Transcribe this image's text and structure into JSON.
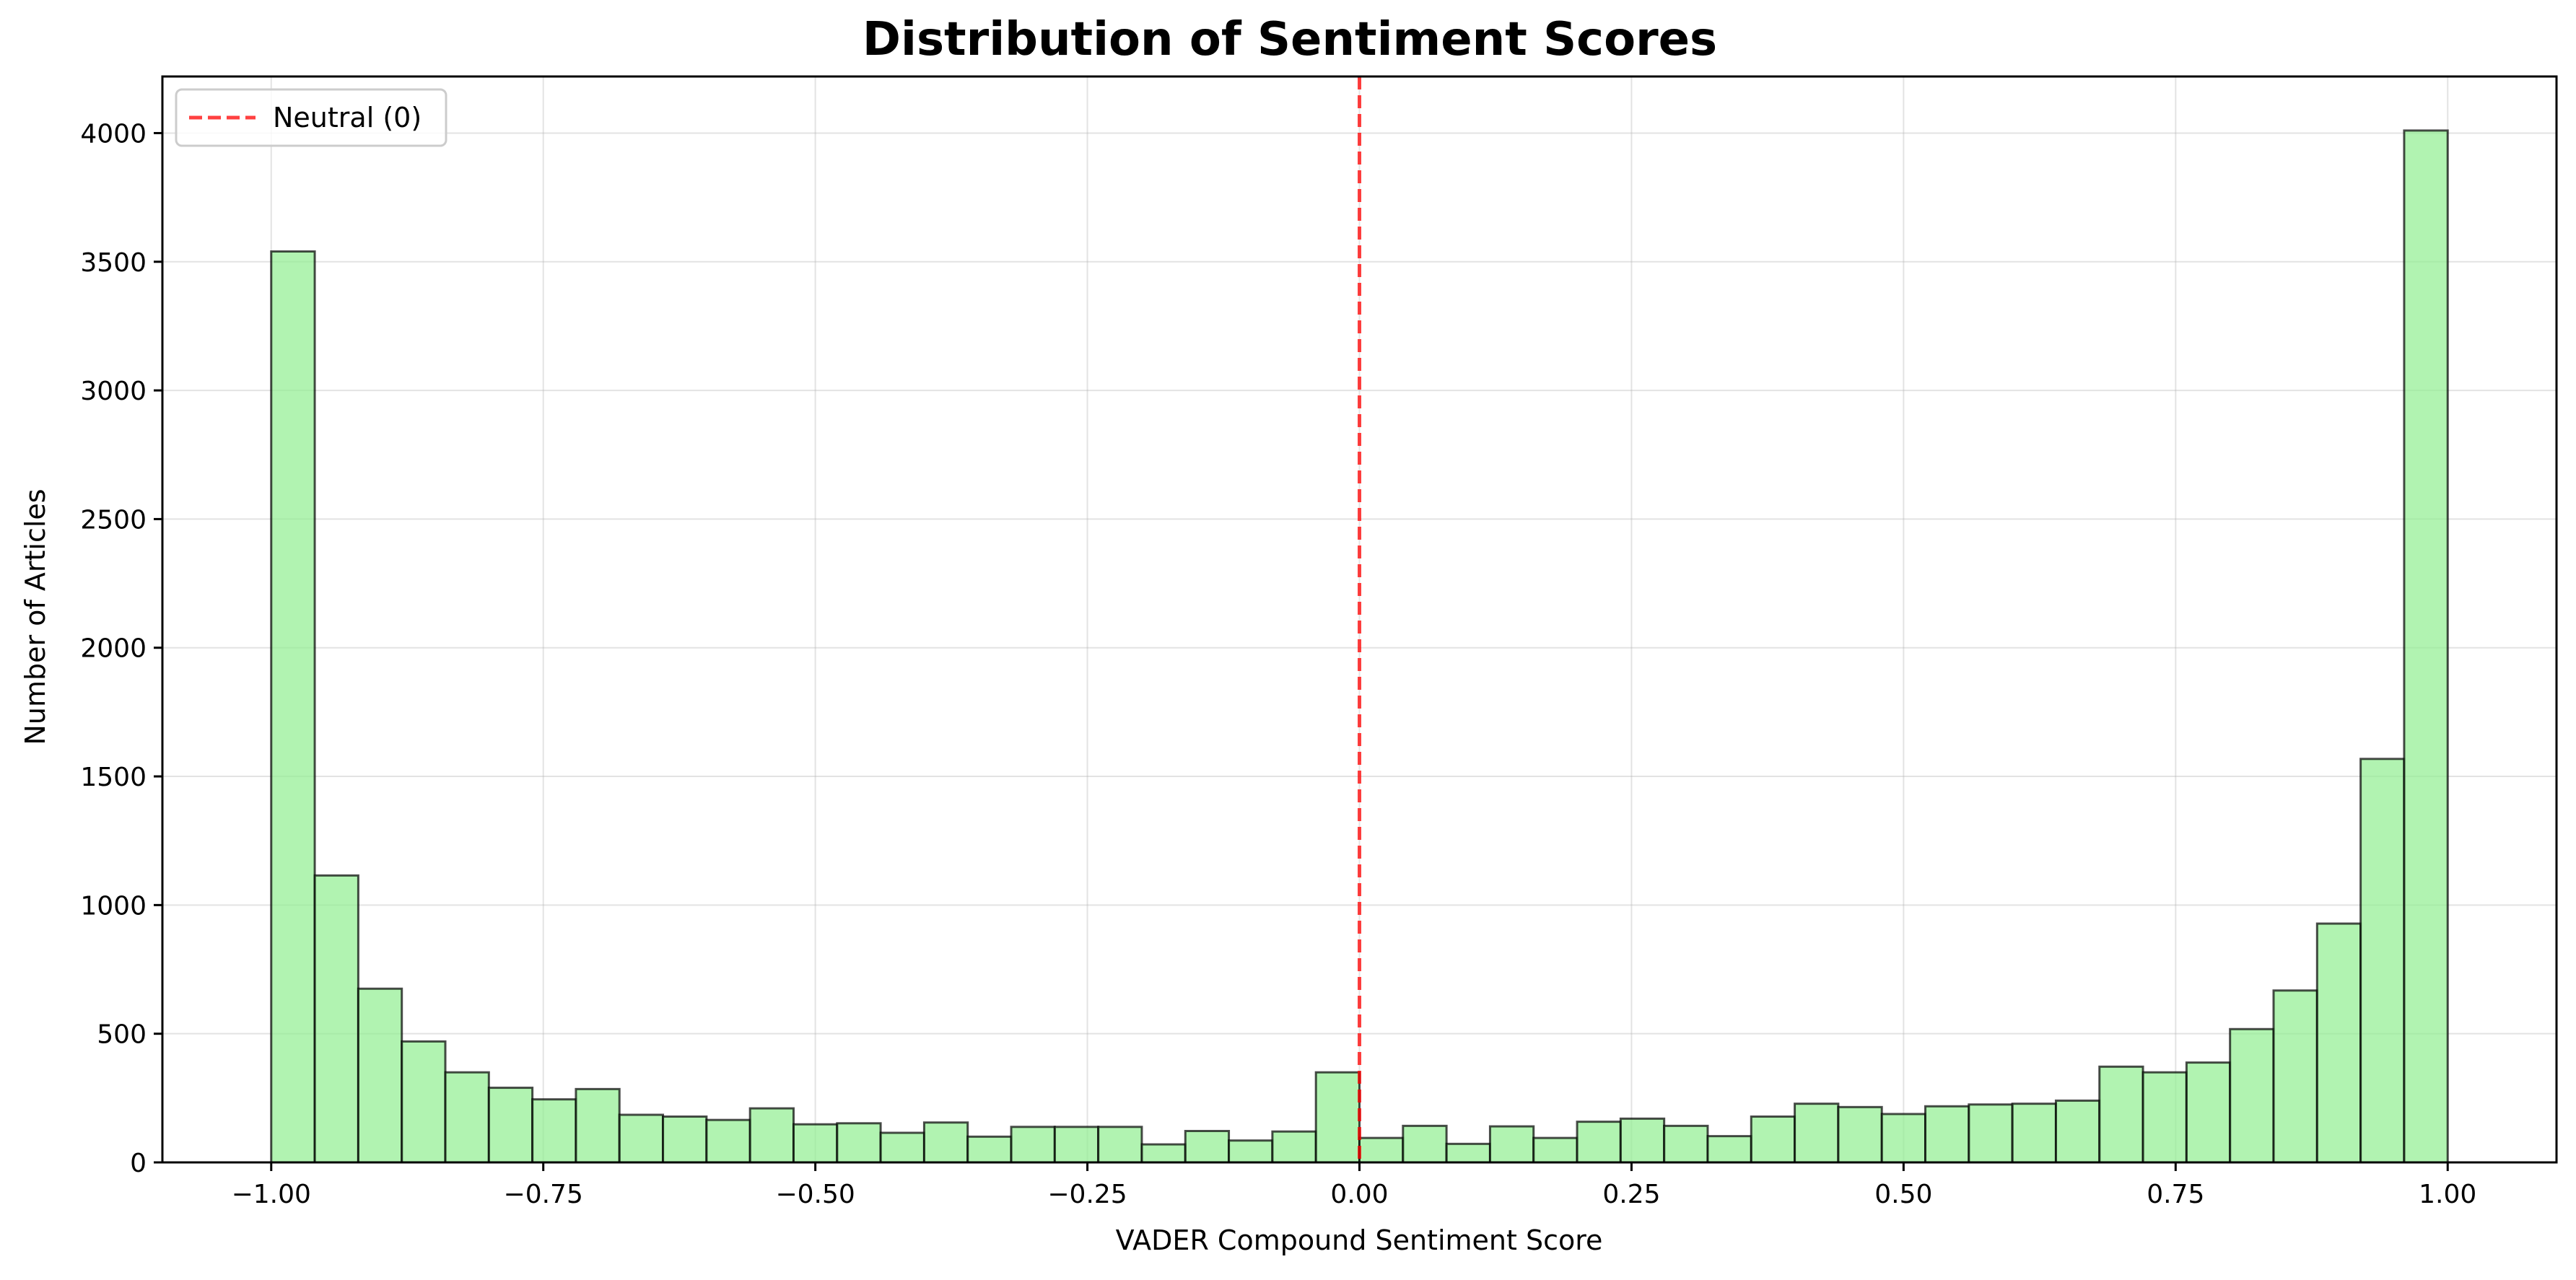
{
  "chart_data": {
    "type": "bar",
    "title": "Distribution of Sentiment Scores",
    "xlabel": "VADER Compound Sentiment Score",
    "ylabel": "Number of Articles",
    "xlim": [
      -1.1,
      1.1
    ],
    "ylim": [
      0,
      4220
    ],
    "x_ticks": [
      -1.0,
      -0.75,
      -0.5,
      -0.25,
      0.0,
      0.25,
      0.5,
      0.75,
      1.0
    ],
    "x_tick_labels": [
      "−1.00",
      "−0.75",
      "−0.50",
      "−0.25",
      "0.00",
      "0.25",
      "0.50",
      "0.75",
      "1.00"
    ],
    "y_ticks": [
      0,
      500,
      1000,
      1500,
      2000,
      2500,
      3000,
      3500,
      4000
    ],
    "y_tick_labels": [
      "0",
      "500",
      "1000",
      "1500",
      "2000",
      "2500",
      "3000",
      "3500",
      "4000"
    ],
    "grid": true,
    "bins": {
      "start": -1.0,
      "width": 0.04,
      "count": 50
    },
    "values": [
      3540,
      1115,
      675,
      470,
      350,
      290,
      245,
      285,
      185,
      178,
      165,
      210,
      148,
      152,
      115,
      155,
      100,
      138,
      138,
      138,
      70,
      122,
      85,
      120,
      350,
      95,
      142,
      72,
      140,
      95,
      158,
      170,
      142,
      102,
      178,
      228,
      215,
      188,
      218,
      225,
      228,
      240,
      372,
      350,
      388,
      518,
      668,
      928,
      1568,
      4010
    ],
    "bar_color": "#90ee90",
    "bar_edge_color": "#000000",
    "reference_line": {
      "x": 0.0,
      "color": "#ff0000",
      "style": "dashed",
      "label": "Neutral (0)"
    },
    "legend": {
      "placement": "top-left",
      "entries": [
        "Neutral (0)"
      ]
    }
  }
}
